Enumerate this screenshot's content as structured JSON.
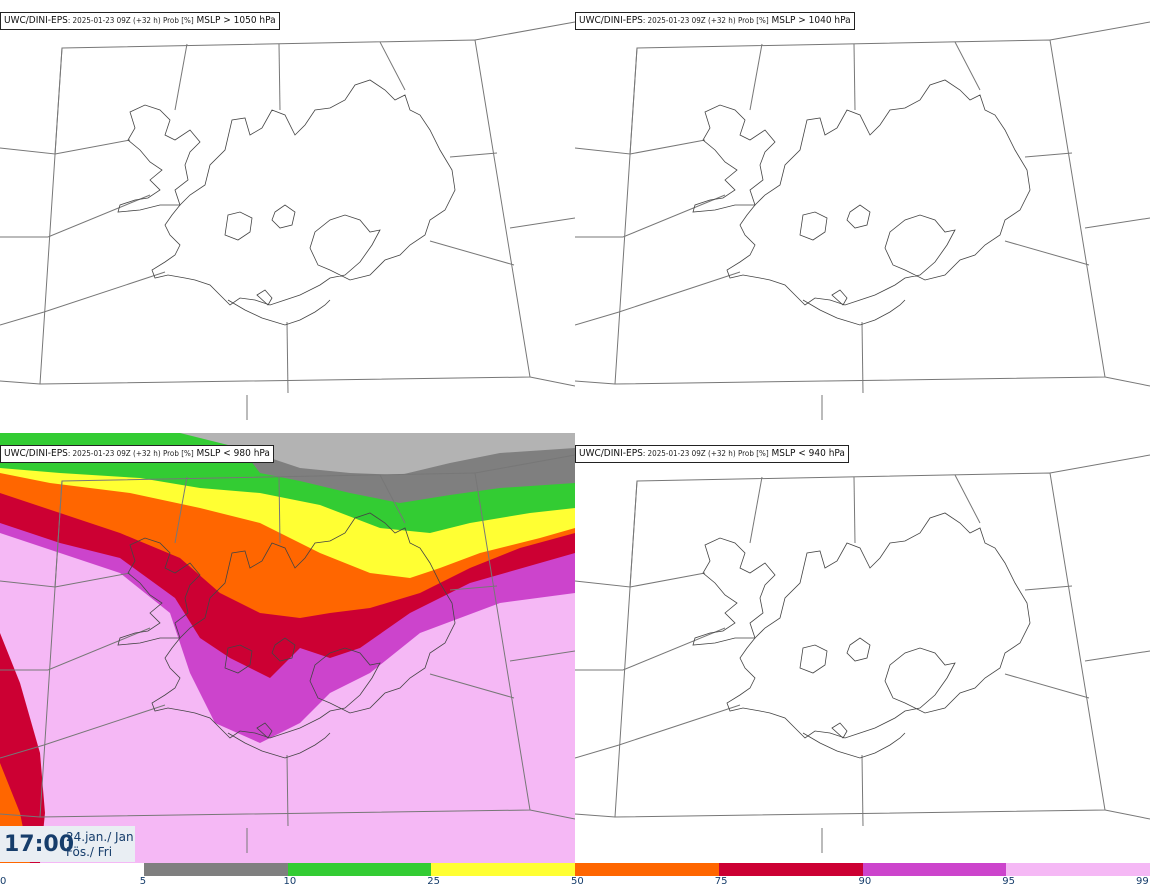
{
  "panels": [
    {
      "model": "UWC/DINI-EPS",
      "meta": ": 2025-01-23 09Z (+32 h) Prob [%]",
      "field": "MSLP > 1050 hPa"
    },
    {
      "model": "UWC/DINI-EPS",
      "meta": ": 2025-01-23 09Z (+32 h) Prob [%]",
      "field": "MSLP > 1040 hPa"
    },
    {
      "model": "UWC/DINI-EPS",
      "meta": ": 2025-01-23 09Z (+32 h) Prob [%]",
      "field": "MSLP < 980 hPa"
    },
    {
      "model": "UWC/DINI-EPS",
      "meta": ": 2025-01-23 09Z (+32 h) Prob [%]",
      "field": "MSLP < 940 hPa"
    }
  ],
  "valid_time": {
    "time": "17:00",
    "date_line1": "24.jan./ Jan",
    "date_line2": "Fös./ Fri"
  },
  "colorbar": {
    "ticks": [
      "0",
      "5",
      "10",
      "25",
      "50",
      "75",
      "90",
      "95",
      "99"
    ],
    "colors": [
      "#ffffff",
      "#b3b3b3",
      "#7f7f7f",
      "#33cc33",
      "#ffff33",
      "#ff6600",
      "#cc0033",
      "#cc44cc",
      "#f5b8f5"
    ]
  }
}
